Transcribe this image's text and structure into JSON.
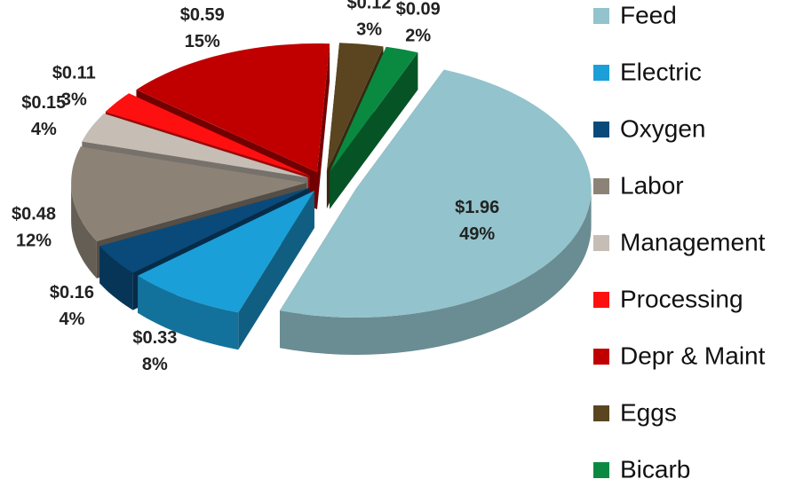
{
  "chart_data": {
    "type": "pie",
    "categories": [
      "Feed",
      "Electric",
      "Oxygen",
      "Labor",
      "Management",
      "Processing",
      "Depr & Maint",
      "Eggs",
      "Bicarb"
    ],
    "values": [
      1.96,
      0.33,
      0.16,
      0.48,
      0.15,
      0.11,
      0.59,
      0.12,
      0.09
    ],
    "value_labels": [
      "$1.96",
      "$0.33",
      "$0.16",
      "$0.48",
      "$0.15",
      "$0.11",
      "$0.59",
      "$0.12",
      "$0.09"
    ],
    "percents": [
      49,
      8,
      4,
      12,
      4,
      3,
      15,
      3,
      2
    ],
    "percent_labels": [
      "49%",
      "8%",
      "4%",
      "12%",
      "4%",
      "3%",
      "15%",
      "3%",
      "2%"
    ],
    "colors": [
      "#93c3cc",
      "#1a9fd8",
      "#0a4a7a",
      "#8c8276",
      "#c6bdb4",
      "#ff1010",
      "#c00000",
      "#5a4520",
      "#0a8a40"
    ],
    "legend": "right"
  }
}
